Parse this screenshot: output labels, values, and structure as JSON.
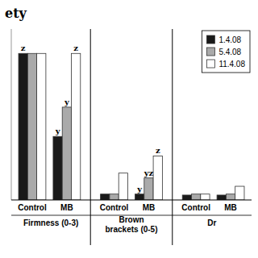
{
  "chart_data": {
    "type": "bar",
    "title": "ety",
    "categories": [
      "Control",
      "MB",
      "Control",
      "MB",
      "Control",
      "MB"
    ],
    "group_labels": [
      "Firmness (0-3)",
      "Brown brackets (0-5)",
      "Dr"
    ],
    "series": [
      {
        "name": "1.4.08",
        "color": "#1a1a1a",
        "values": [
          3.0,
          1.3,
          0.12,
          0.12,
          0.1,
          0.1
        ],
        "annotations": [
          "z",
          "y",
          null,
          "y",
          null,
          null
        ]
      },
      {
        "name": "5.4.08",
        "color": "#aaaaaa",
        "values": [
          3.0,
          1.9,
          0.12,
          0.45,
          0.12,
          0.12
        ],
        "annotations": [
          null,
          "y",
          null,
          "yz",
          null,
          null
        ]
      },
      {
        "name": "11.4.08",
        "color": "#ffffff",
        "values": [
          3.0,
          3.0,
          0.55,
          0.9,
          0.12,
          0.28
        ],
        "annotations": [
          null,
          "z",
          null,
          "z",
          null,
          null
        ]
      }
    ],
    "ylim": [
      0,
      3.5
    ],
    "tick_labels": "x",
    "legend": "upper right",
    "grid": false
  }
}
